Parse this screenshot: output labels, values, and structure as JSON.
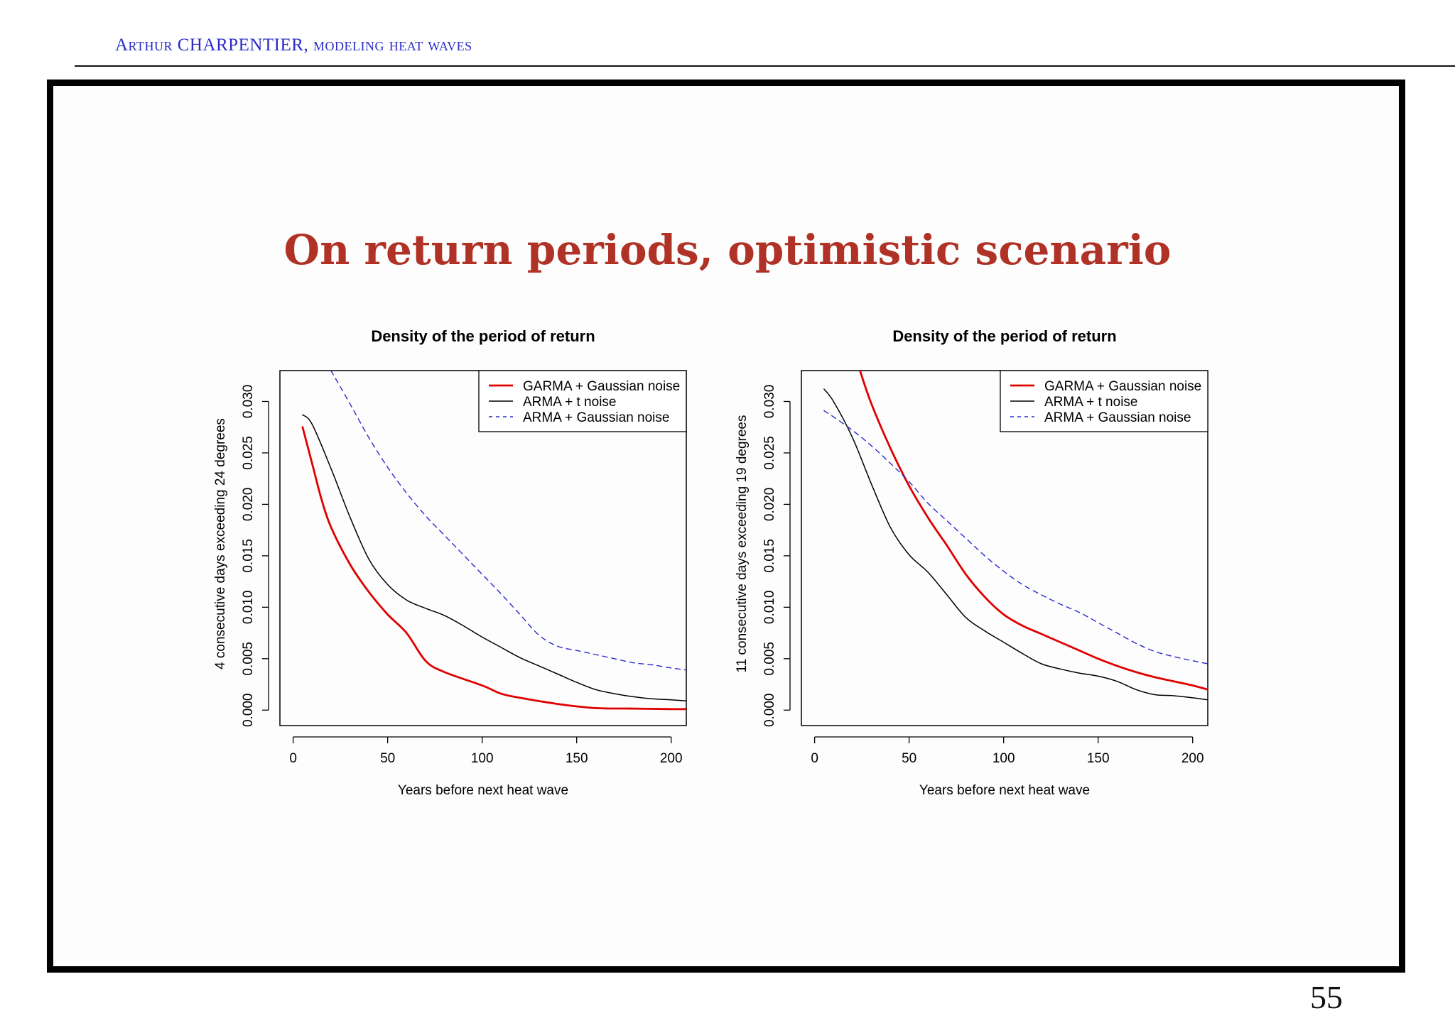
{
  "header": {
    "text": "Arthur CHARPENTIER, modeling heat waves"
  },
  "slide": {
    "title": "On return periods, optimistic scenario",
    "page_number": "55"
  },
  "colors": {
    "accent": "#b03226",
    "header": "#2929c8",
    "garma": "#e00000",
    "arma_t": "#000000",
    "arma_gauss": "#2a2ad0"
  },
  "chart_data": [
    {
      "type": "line",
      "title": "Density of the period of return",
      "xlabel": "Years before next heat wave",
      "ylabel": "4 consecutive days exceeding 24 degrees",
      "xlim": [
        -7,
        208
      ],
      "ylim": [
        -0.0015,
        0.033
      ],
      "xticks": [
        "0",
        "50",
        "100",
        "150",
        "200"
      ],
      "yticks": [
        "0.000",
        "0.005",
        "0.010",
        "0.015",
        "0.020",
        "0.025",
        "0.030"
      ],
      "legend": {
        "position": "top-right",
        "entries": [
          "GARMA + Gaussian noise",
          "ARMA + t noise",
          "ARMA + Gaussian noise"
        ]
      },
      "series": [
        {
          "name": "GARMA + Gaussian noise",
          "x": [
            5,
            10,
            15,
            20,
            30,
            40,
            50,
            60,
            70,
            80,
            100,
            110,
            120,
            140,
            160,
            180,
            200,
            208
          ],
          "y": [
            0.0275,
            0.024,
            0.0205,
            0.0178,
            0.0142,
            0.0115,
            0.0093,
            0.0075,
            0.0048,
            0.0037,
            0.0024,
            0.0016,
            0.0012,
            0.0006,
            0.0002,
            0.00015,
            0.0001,
            0.0001
          ]
        },
        {
          "name": "ARMA + t noise",
          "x": [
            5,
            10,
            20,
            30,
            40,
            50,
            60,
            70,
            80,
            90,
            100,
            110,
            120,
            130,
            140,
            150,
            160,
            170,
            180,
            190,
            200,
            208
          ],
          "y": [
            0.0287,
            0.0278,
            0.0235,
            0.0188,
            0.0147,
            0.0122,
            0.0107,
            0.0099,
            0.0092,
            0.0082,
            0.0071,
            0.0061,
            0.0051,
            0.0043,
            0.0035,
            0.0027,
            0.002,
            0.0016,
            0.0013,
            0.0011,
            0.001,
            0.0009
          ]
        },
        {
          "name": "ARMA + Gaussian noise",
          "x": [
            20,
            30,
            40,
            50,
            60,
            70,
            80,
            90,
            100,
            110,
            120,
            130,
            140,
            150,
            160,
            170,
            180,
            190,
            200,
            208
          ],
          "y": [
            0.033,
            0.0298,
            0.0265,
            0.0236,
            0.0211,
            0.0189,
            0.017,
            0.0151,
            0.0132,
            0.0113,
            0.0093,
            0.0073,
            0.0062,
            0.0058,
            0.0054,
            0.005,
            0.0046,
            0.0044,
            0.0041,
            0.0039
          ]
        }
      ]
    },
    {
      "type": "line",
      "title": "Density of the period of return",
      "xlabel": "Years before next heat wave",
      "ylabel": "11 consecutive days exceeding 19 degrees",
      "xlim": [
        -7,
        208
      ],
      "ylim": [
        -0.0015,
        0.033
      ],
      "xticks": [
        "0",
        "50",
        "100",
        "150",
        "200"
      ],
      "yticks": [
        "0.000",
        "0.005",
        "0.010",
        "0.015",
        "0.020",
        "0.025",
        "0.030"
      ],
      "legend": {
        "position": "top-right",
        "entries": [
          "GARMA + Gaussian noise",
          "ARMA + t noise",
          "ARMA + Gaussian noise"
        ]
      },
      "series": [
        {
          "name": "GARMA + Gaussian noise",
          "x": [
            24,
            30,
            40,
            50,
            60,
            70,
            80,
            90,
            100,
            110,
            120,
            130,
            140,
            150,
            160,
            170,
            180,
            190,
            200,
            208
          ],
          "y": [
            0.033,
            0.0298,
            0.0255,
            0.0218,
            0.0187,
            0.016,
            0.0132,
            0.011,
            0.0093,
            0.0082,
            0.0074,
            0.0066,
            0.0058,
            0.005,
            0.0043,
            0.0037,
            0.0032,
            0.0028,
            0.0024,
            0.002
          ]
        },
        {
          "name": "ARMA + t noise",
          "x": [
            5,
            10,
            20,
            30,
            40,
            50,
            60,
            70,
            80,
            90,
            100,
            110,
            120,
            130,
            140,
            150,
            160,
            170,
            180,
            190,
            200,
            208
          ],
          "y": [
            0.0312,
            0.03,
            0.0265,
            0.022,
            0.0178,
            0.0151,
            0.0134,
            0.0112,
            0.009,
            0.0077,
            0.0066,
            0.0055,
            0.0045,
            0.004,
            0.0036,
            0.0033,
            0.0028,
            0.002,
            0.0015,
            0.0014,
            0.0012,
            0.001
          ]
        },
        {
          "name": "ARMA + Gaussian noise",
          "x": [
            5,
            10,
            20,
            30,
            40,
            50,
            60,
            70,
            80,
            90,
            100,
            110,
            120,
            130,
            140,
            150,
            160,
            170,
            180,
            190,
            200,
            208
          ],
          "y": [
            0.0291,
            0.0285,
            0.0272,
            0.0257,
            0.024,
            0.0222,
            0.0201,
            0.0184,
            0.0167,
            0.015,
            0.0135,
            0.0122,
            0.0112,
            0.0103,
            0.0095,
            0.0085,
            0.0075,
            0.0065,
            0.0057,
            0.0052,
            0.0048,
            0.0045
          ]
        }
      ]
    }
  ]
}
